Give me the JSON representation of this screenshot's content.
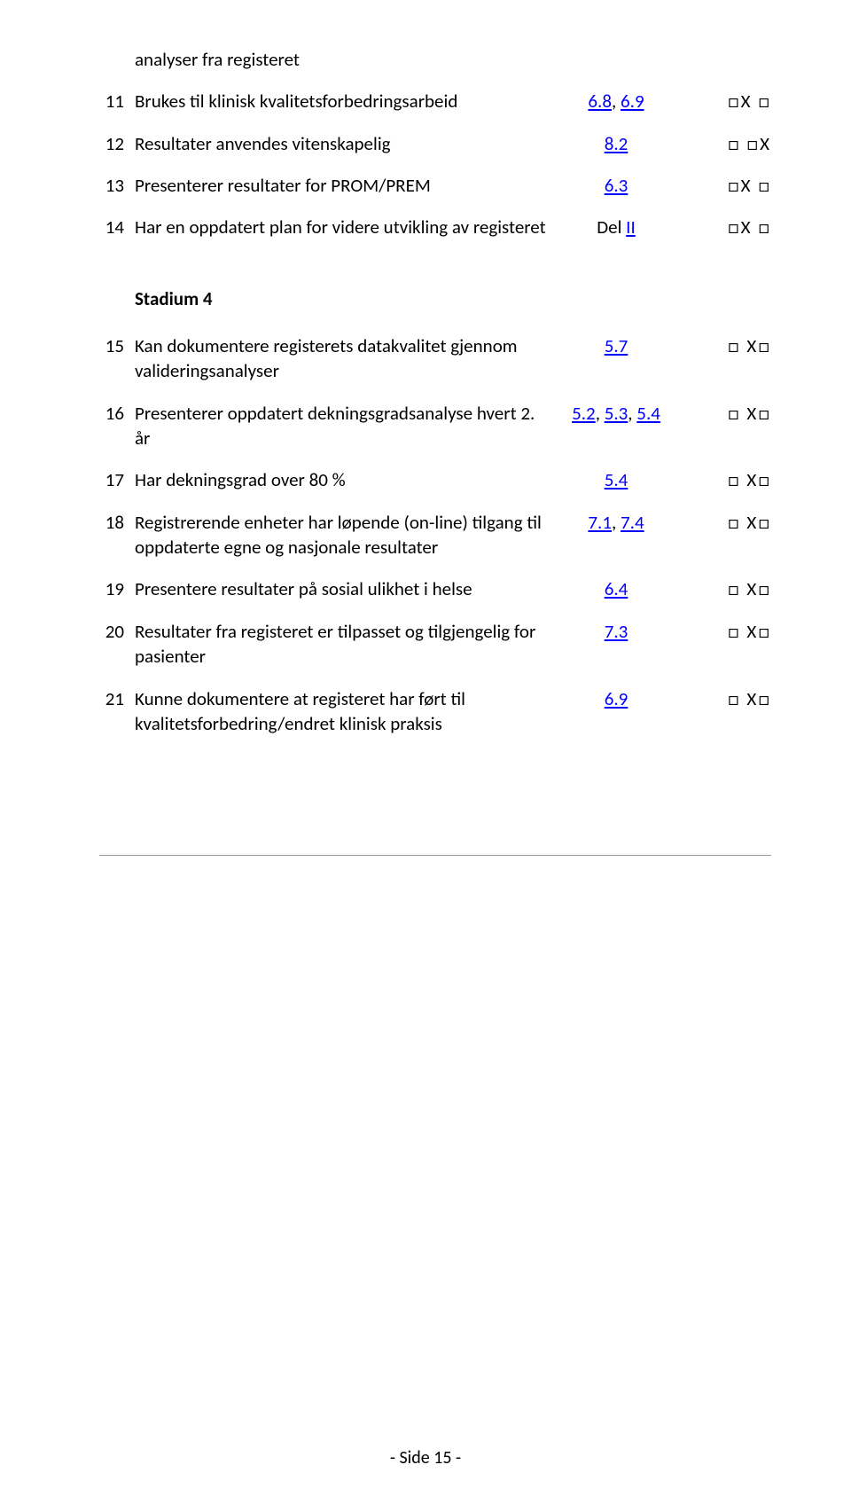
{
  "topRow": {
    "continuation": "analyser fra registeret"
  },
  "rows1": [
    {
      "n": "11",
      "desc": "Brukes til klinisk kvalitetsforbedringsarbeid",
      "ref_links": [
        "6.8",
        "6.9"
      ],
      "ref_sep": ", ",
      "check": "□X □"
    },
    {
      "n": "12",
      "desc": "Resultater anvendes vitenskapelig",
      "ref_links": [
        "8.2"
      ],
      "ref_sep": "",
      "check": "□ □X"
    },
    {
      "n": "13",
      "desc": "Presenterer resultater for PROM/PREM",
      "ref_links": [
        "6.3"
      ],
      "ref_sep": "",
      "check": "□X □"
    },
    {
      "n": "14",
      "desc": "Har en oppdatert plan for videre utvikling av registeret",
      "ref_prefix": "Del ",
      "ref_links": [
        "II"
      ],
      "ref_sep": "",
      "check": "□X □"
    }
  ],
  "heading2": "Stadium 4",
  "rows2": [
    {
      "n": "15",
      "desc": "Kan dokumentere registerets datakvalitet gjennom valideringsanalyser",
      "ref_links": [
        "5.7"
      ],
      "ref_sep": "",
      "check": "□  X□"
    },
    {
      "n": "16",
      "desc": "Presenterer oppdatert dekningsgradsanalyse hvert 2. år",
      "ref_links": [
        "5.2",
        "5.3",
        "5.4"
      ],
      "ref_sep": ", ",
      "check": "□  X□"
    },
    {
      "n": "17",
      "desc": "Har dekningsgrad over 80 %",
      "ref_links": [
        "5.4"
      ],
      "ref_sep": "",
      "check": "□  X□"
    },
    {
      "n": "18",
      "desc": "Registrerende enheter har løpende (on-line) tilgang til oppdaterte egne og nasjonale resultater",
      "ref_links": [
        "7.1",
        "7.4"
      ],
      "ref_sep": ", ",
      "check": "□  X□"
    },
    {
      "n": "19",
      "desc": "Presentere resultater på sosial ulikhet i helse",
      "ref_links": [
        "6.4"
      ],
      "ref_sep": "",
      "check": "□  X□"
    },
    {
      "n": "20",
      "desc": "Resultater fra registeret er tilpasset og tilgjengelig for pasienter",
      "ref_links": [
        "7.3"
      ],
      "ref_sep": "",
      "check": "□  X□"
    },
    {
      "n": "21",
      "desc": "Kunne dokumentere at registeret har ført til kvalitetsforbedring/endret klinisk praksis",
      "ref_links": [
        "6.9"
      ],
      "ref_sep": "",
      "check": "□  X□"
    }
  ],
  "footer": {
    "label": "-  Side 15  -"
  }
}
